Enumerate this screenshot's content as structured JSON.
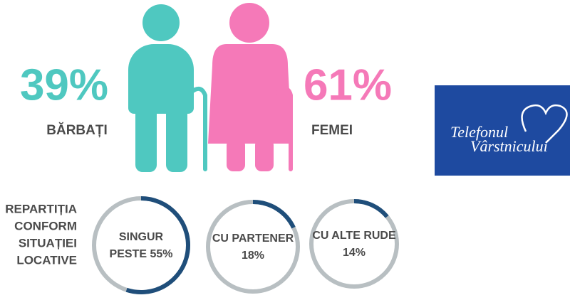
{
  "figures": {
    "men": {
      "percent": "39%",
      "label": "BĂRBAȚI"
    },
    "women": {
      "percent": "61%",
      "label": "FEMEI"
    }
  },
  "distribution": {
    "title_lines": [
      "REPARTIȚIA",
      "CONFORM",
      "SITUAȚIEI",
      "LOCATIVE"
    ],
    "rings": [
      {
        "lines": [
          "SINGUR",
          "PESTE 55%"
        ],
        "percent": 55
      },
      {
        "lines": [
          "CU PARTENER",
          "18%"
        ],
        "percent": 18
      },
      {
        "lines": [
          "CU ALTE RUDE",
          "14%"
        ],
        "percent": 14
      }
    ]
  },
  "logo": {
    "lines": [
      "Telefonul",
      "Vârstnicului"
    ]
  }
}
